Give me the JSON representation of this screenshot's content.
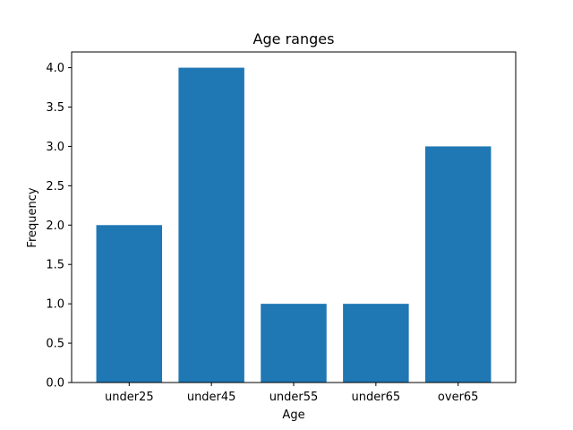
{
  "chart_data": {
    "type": "bar",
    "title": "Age ranges",
    "xlabel": "Age",
    "ylabel": "Frequency",
    "categories": [
      "under25",
      "under45",
      "under55",
      "under65",
      "over65"
    ],
    "values": [
      2,
      4,
      1,
      1,
      3
    ],
    "ylim": [
      0,
      4.2
    ],
    "yticks": [
      "0.0",
      "0.5",
      "1.0",
      "1.5",
      "2.0",
      "2.5",
      "3.0",
      "3.5",
      "4.0"
    ],
    "bar_color": "#1f77b4",
    "grid": false
  }
}
